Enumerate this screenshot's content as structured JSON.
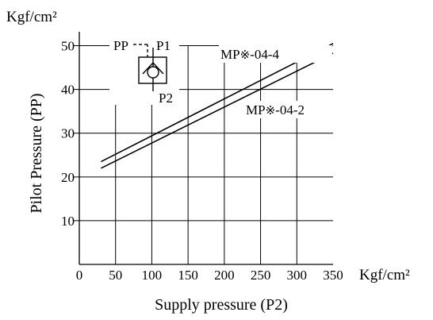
{
  "chart_data": {
    "type": "line",
    "xlabel": "Supply pressure (P2)",
    "ylabel": "Pilot Pressure (PP)",
    "x_unit": "Kgf/cm²",
    "y_unit": "Kgf/cm²",
    "xlim": [
      0,
      350
    ],
    "ylim": [
      0,
      55
    ],
    "x_ticks": [
      0,
      50,
      100,
      150,
      200,
      250,
      300,
      350
    ],
    "y_ticks": [
      10,
      20,
      30,
      40,
      50
    ],
    "grid": true,
    "legend": "none",
    "series": [
      {
        "name": "MP※-04-4",
        "label_parts": {
          "prefix": "MP",
          "symbol": "※",
          "suffix": "-04-4"
        },
        "x": [
          30,
          350
        ],
        "y": [
          23.5,
          50.5
        ]
      },
      {
        "name": "MP※-04-2",
        "label_parts": {
          "prefix": "MP",
          "symbol": "※",
          "suffix": "-04-2"
        },
        "x": [
          30,
          350
        ],
        "y": [
          22.0,
          48.3
        ]
      }
    ],
    "symbol_inset": {
      "labels": [
        "PP",
        "P1",
        "P2"
      ]
    }
  },
  "colors": {
    "ink": "#000000",
    "background": "#ffffff"
  }
}
